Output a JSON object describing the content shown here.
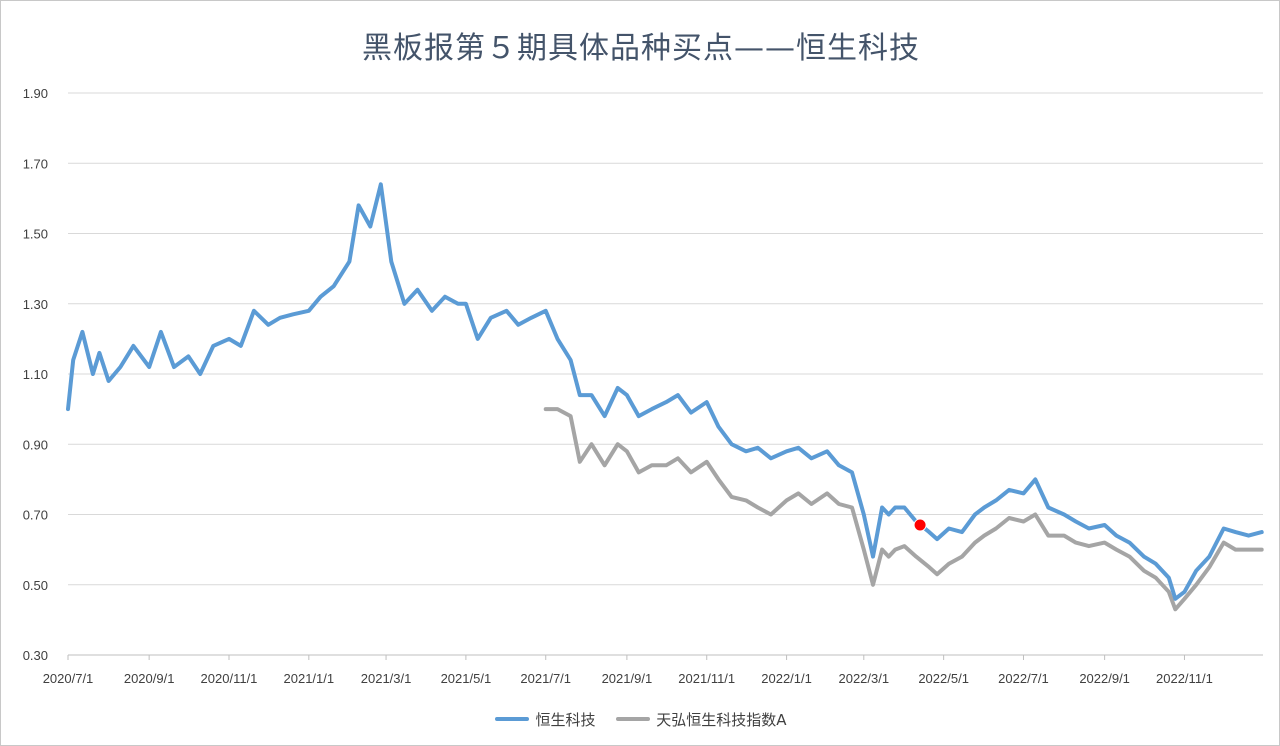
{
  "chart_data": {
    "type": "line",
    "title": "黑板报第５期具体品种买点——恒生科技",
    "xlabel": "",
    "ylabel": "",
    "ylim": [
      0.3,
      1.9
    ],
    "yticks": [
      "0.30",
      "0.50",
      "0.70",
      "0.90",
      "1.10",
      "1.30",
      "1.50",
      "1.70",
      "1.90"
    ],
    "xticks": [
      "2020/7/1",
      "2020/9/1",
      "2020/11/1",
      "2021/1/1",
      "2021/3/1",
      "2021/5/1",
      "2021/7/1",
      "2021/9/1",
      "2021/11/1",
      "2022/1/1",
      "2022/3/1",
      "2022/5/1",
      "2022/7/1",
      "2022/9/1",
      "2022/11/1"
    ],
    "grid": true,
    "legend": "bottom",
    "series": [
      {
        "name": "恒生科技",
        "color": "#5b9bd5",
        "x": [
          "2020/7/1",
          "2020/7/5",
          "2020/7/12",
          "2020/7/20",
          "2020/7/25",
          "2020/8/1",
          "2020/8/10",
          "2020/8/20",
          "2020/9/1",
          "2020/9/10",
          "2020/9/20",
          "2020/10/1",
          "2020/10/10",
          "2020/10/20",
          "2020/11/1",
          "2020/11/10",
          "2020/11/20",
          "2020/12/1",
          "2020/12/10",
          "2020/12/20",
          "2021/1/1",
          "2021/1/10",
          "2021/1/20",
          "2021/2/1",
          "2021/2/8",
          "2021/2/17",
          "2021/2/25",
          "2021/3/5",
          "2021/3/15",
          "2021/3/25",
          "2021/4/5",
          "2021/4/15",
          "2021/4/25",
          "2021/5/1",
          "2021/5/10",
          "2021/5/20",
          "2021/6/1",
          "2021/6/10",
          "2021/6/20",
          "2021/7/1",
          "2021/7/10",
          "2021/7/20",
          "2021/7/27",
          "2021/8/5",
          "2021/8/15",
          "2021/8/25",
          "2021/9/1",
          "2021/9/10",
          "2021/9/20",
          "2021/10/1",
          "2021/10/10",
          "2021/10/20",
          "2021/11/1",
          "2021/11/10",
          "2021/11/20",
          "2021/12/1",
          "2021/12/10",
          "2021/12/20",
          "2022/1/1",
          "2022/1/10",
          "2022/1/20",
          "2022/2/1",
          "2022/2/10",
          "2022/2/20",
          "2022/3/1",
          "2022/3/8",
          "2022/3/15",
          "2022/3/20",
          "2022/3/25",
          "2022/4/1",
          "2022/4/10",
          "2022/4/20",
          "2022/4/26",
          "2022/5/5",
          "2022/5/15",
          "2022/5/25",
          "2022/6/1",
          "2022/6/10",
          "2022/6/20",
          "2022/7/1",
          "2022/7/10",
          "2022/7/20",
          "2022/8/1",
          "2022/8/10",
          "2022/8/20",
          "2022/9/1",
          "2022/9/10",
          "2022/9/20",
          "2022/10/1",
          "2022/10/10",
          "2022/10/20",
          "2022/10/25",
          "2022/11/1",
          "2022/11/10",
          "2022/11/20",
          "2022/12/1",
          "2022/12/10",
          "2022/12/20",
          "2022/12/30"
        ],
        "y": [
          1.0,
          1.14,
          1.22,
          1.1,
          1.16,
          1.08,
          1.12,
          1.18,
          1.12,
          1.22,
          1.12,
          1.15,
          1.1,
          1.18,
          1.2,
          1.18,
          1.28,
          1.24,
          1.26,
          1.27,
          1.28,
          1.32,
          1.35,
          1.42,
          1.58,
          1.52,
          1.64,
          1.42,
          1.3,
          1.34,
          1.28,
          1.32,
          1.3,
          1.3,
          1.2,
          1.26,
          1.28,
          1.24,
          1.26,
          1.28,
          1.2,
          1.14,
          1.04,
          1.04,
          0.98,
          1.06,
          1.04,
          0.98,
          1.0,
          1.02,
          1.04,
          0.99,
          1.02,
          0.95,
          0.9,
          0.88,
          0.89,
          0.86,
          0.88,
          0.89,
          0.86,
          0.88,
          0.84,
          0.82,
          0.7,
          0.58,
          0.72,
          0.7,
          0.72,
          0.72,
          0.68,
          0.65,
          0.63,
          0.66,
          0.65,
          0.7,
          0.72,
          0.74,
          0.77,
          0.76,
          0.8,
          0.72,
          0.7,
          0.68,
          0.66,
          0.67,
          0.64,
          0.62,
          0.58,
          0.56,
          0.52,
          0.46,
          0.48,
          0.54,
          0.58,
          0.66,
          0.65,
          0.64,
          0.65
        ]
      },
      {
        "name": "天弘恒生科技指数A",
        "color": "#a5a5a5",
        "x": [
          "2021/7/1",
          "2021/7/10",
          "2021/7/20",
          "2021/7/27",
          "2021/8/5",
          "2021/8/15",
          "2021/8/25",
          "2021/9/1",
          "2021/9/10",
          "2021/9/20",
          "2021/10/1",
          "2021/10/10",
          "2021/10/20",
          "2021/11/1",
          "2021/11/10",
          "2021/11/20",
          "2021/12/1",
          "2021/12/10",
          "2021/12/20",
          "2022/1/1",
          "2022/1/10",
          "2022/1/20",
          "2022/2/1",
          "2022/2/10",
          "2022/2/20",
          "2022/3/1",
          "2022/3/8",
          "2022/3/15",
          "2022/3/20",
          "2022/3/25",
          "2022/4/1",
          "2022/4/10",
          "2022/4/20",
          "2022/4/26",
          "2022/5/5",
          "2022/5/15",
          "2022/5/25",
          "2022/6/1",
          "2022/6/10",
          "2022/6/20",
          "2022/7/1",
          "2022/7/10",
          "2022/7/20",
          "2022/8/1",
          "2022/8/10",
          "2022/8/20",
          "2022/9/1",
          "2022/9/10",
          "2022/9/20",
          "2022/10/1",
          "2022/10/10",
          "2022/10/20",
          "2022/10/25",
          "2022/11/1",
          "2022/11/10",
          "2022/11/20",
          "2022/12/1",
          "2022/12/10",
          "2022/12/20",
          "2022/12/30"
        ],
        "y": [
          1.0,
          1.0,
          0.98,
          0.85,
          0.9,
          0.84,
          0.9,
          0.88,
          0.82,
          0.84,
          0.84,
          0.86,
          0.82,
          0.85,
          0.8,
          0.75,
          0.74,
          0.72,
          0.7,
          0.74,
          0.76,
          0.73,
          0.76,
          0.73,
          0.72,
          0.6,
          0.5,
          0.6,
          0.58,
          0.6,
          0.61,
          0.58,
          0.55,
          0.53,
          0.56,
          0.58,
          0.62,
          0.64,
          0.66,
          0.69,
          0.68,
          0.7,
          0.64,
          0.64,
          0.62,
          0.61,
          0.62,
          0.6,
          0.58,
          0.54,
          0.52,
          0.48,
          0.43,
          0.46,
          0.5,
          0.55,
          0.62,
          0.6,
          0.6,
          0.6
        ]
      }
    ],
    "marker": {
      "x": "2022/4/13",
      "y": 0.67,
      "color": "#ff0000"
    }
  }
}
